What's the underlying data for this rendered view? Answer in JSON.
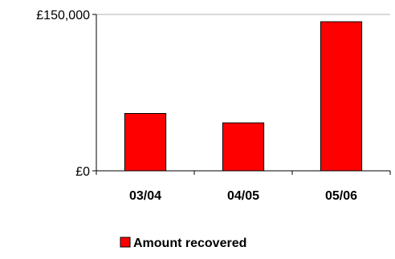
{
  "chart_data": {
    "type": "bar",
    "categories": [
      "03/04",
      "04/05",
      "05/06"
    ],
    "series": [
      {
        "name": "Amount recovered",
        "values": [
          55000,
          46000,
          143000
        ],
        "color": "#ff0000"
      }
    ],
    "ylim": [
      0,
      150000
    ],
    "y_tick_labels": [
      "£0",
      "£150,000"
    ],
    "grid": false,
    "legend_position": "bottom"
  }
}
